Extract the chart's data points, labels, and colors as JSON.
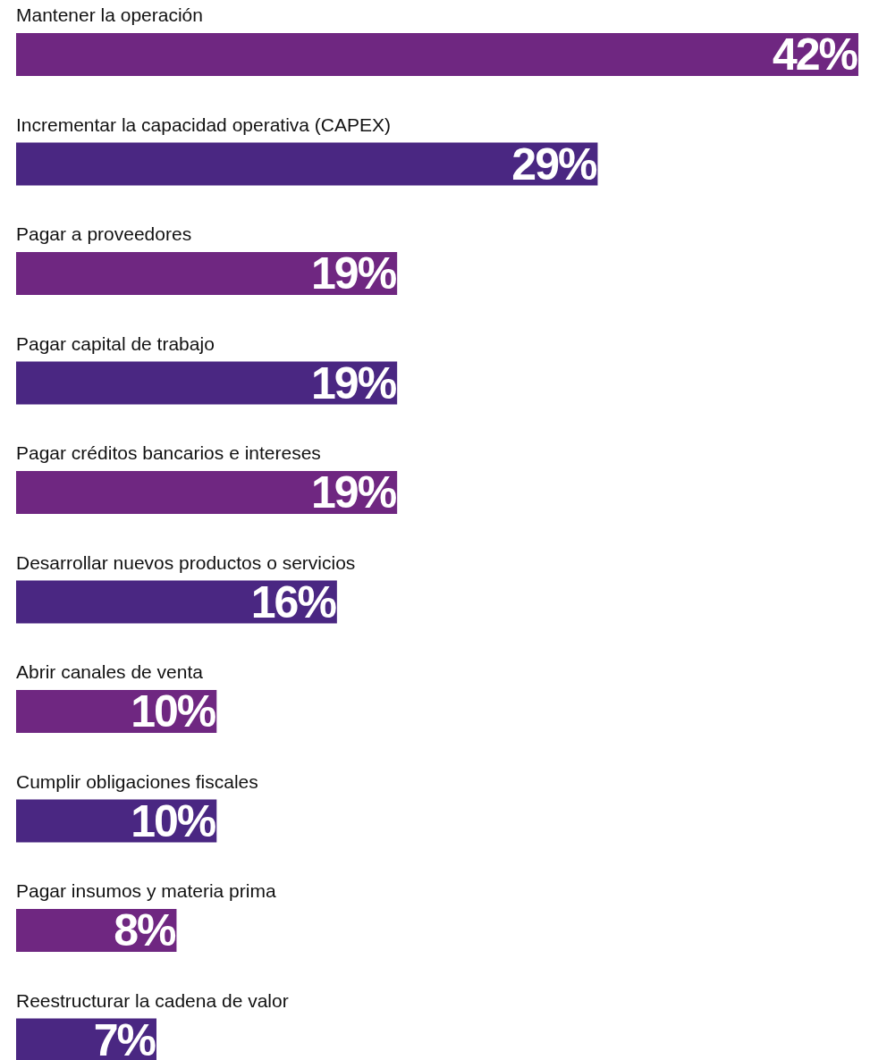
{
  "chart_data": {
    "type": "bar",
    "orientation": "horizontal",
    "categories": [
      "Mantener la operación",
      "Incrementar la capacidad operativa (CAPEX)",
      "Pagar a proveedores",
      "Pagar capital de trabajo",
      "Pagar créditos bancarios e intereses",
      "Desarrollar nuevos productos o servicios",
      "Abrir canales de venta",
      "Cumplir obligaciones fiscales",
      "Pagar insumos y materia prima",
      "Reestructurar la cadena de valor"
    ],
    "values": [
      42,
      29,
      19,
      19,
      19,
      16,
      10,
      10,
      8,
      7
    ],
    "value_labels": [
      "42%",
      "29%",
      "19%",
      "19%",
      "19%",
      "16%",
      "10%",
      "10%",
      "8%",
      "7%"
    ],
    "colors": [
      "#6f2781",
      "#4a2782",
      "#6f2781",
      "#4a2782",
      "#6f2781",
      "#4a2782",
      "#6f2781",
      "#4a2782",
      "#6f2781",
      "#4a2782"
    ]
  }
}
